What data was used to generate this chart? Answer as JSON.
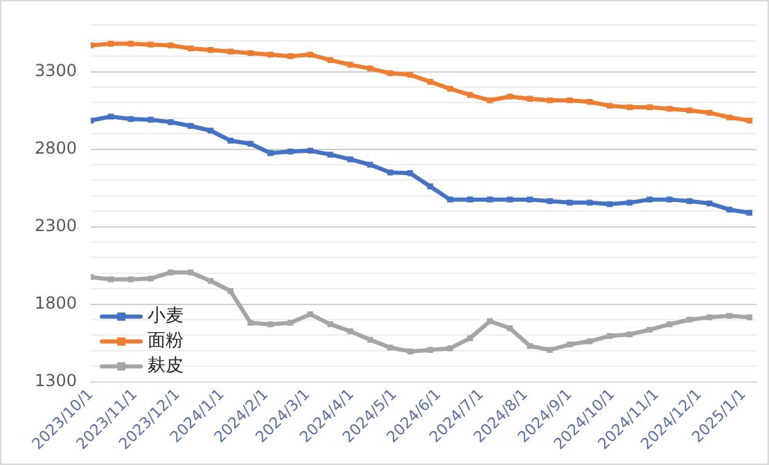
{
  "chart_data": {
    "type": "line",
    "marker": "square",
    "line_style": "solid",
    "grid": "y",
    "legend": "bottom left",
    "x": [
      "2023-10-01",
      "2023-10-15",
      "2023-10-29",
      "2023-11-12",
      "2023-11-26",
      "2023-12-10",
      "2023-12-24",
      "2024-01-07",
      "2024-01-21",
      "2024-02-04",
      "2024-02-18",
      "2024-03-03",
      "2024-03-17",
      "2024-03-31",
      "2024-04-14",
      "2024-04-28",
      "2024-05-12",
      "2024-05-26",
      "2024-06-09",
      "2024-06-23",
      "2024-07-07",
      "2024-07-21",
      "2024-08-04",
      "2024-08-18",
      "2024-09-01",
      "2024-09-15",
      "2024-09-29",
      "2024-10-13",
      "2024-10-27",
      "2024-11-10",
      "2024-11-24",
      "2024-12-08",
      "2024-12-22",
      "2025-01-05"
    ],
    "xlim": [
      "2023-10-01",
      "2025-01-10"
    ],
    "xticks": [
      {
        "value": "2023-10-01",
        "label": "2023/10/1"
      },
      {
        "value": "2023-11-01",
        "label": "2023/11/1"
      },
      {
        "value": "2023-12-01",
        "label": "2023/12/1"
      },
      {
        "value": "2024-01-01",
        "label": "2024/1/1"
      },
      {
        "value": "2024-02-01",
        "label": "2024/2/1"
      },
      {
        "value": "2024-03-01",
        "label": "2024/3/1"
      },
      {
        "value": "2024-04-01",
        "label": "2024/4/1"
      },
      {
        "value": "2024-05-01",
        "label": "2024/5/1"
      },
      {
        "value": "2024-06-01",
        "label": "2024/6/1"
      },
      {
        "value": "2024-07-01",
        "label": "2024/7/1"
      },
      {
        "value": "2024-08-01",
        "label": "2024/8/1"
      },
      {
        "value": "2024-09-01",
        "label": "2024/9/1"
      },
      {
        "value": "2024-10-01",
        "label": "2024/10/1"
      },
      {
        "value": "2024-11-01",
        "label": "2024/11/1"
      },
      {
        "value": "2024-12-01",
        "label": "2024/12/1"
      },
      {
        "value": "2025-01-01",
        "label": "2025/1/1"
      }
    ],
    "ylim": [
      1300,
      3600
    ],
    "yticks": [
      1300,
      {
        "value": 1400,
        "label": null
      },
      {
        "value": 1500,
        "label": null
      },
      {
        "value": 1600,
        "label": null
      },
      {
        "value": 1700,
        "label": null
      },
      1800,
      {
        "value": 1900,
        "label": null
      },
      {
        "value": 2000,
        "label": null
      },
      {
        "value": 2100,
        "label": null
      },
      {
        "value": 2200,
        "label": null
      },
      2300,
      {
        "value": 2400,
        "label": null
      },
      {
        "value": 2500,
        "label": null
      },
      {
        "value": 2600,
        "label": null
      },
      {
        "value": 2700,
        "label": null
      },
      2800,
      {
        "value": 2900,
        "label": null
      },
      {
        "value": 3000,
        "label": null
      },
      {
        "value": 3100,
        "label": null
      },
      {
        "value": 3200,
        "label": null
      },
      3300,
      {
        "value": 3400,
        "label": null
      },
      {
        "value": 3500,
        "label": null
      },
      {
        "value": 3600,
        "label": null
      }
    ],
    "series": [
      {
        "name": "小麦",
        "color": "#4472c4",
        "values": [
          2985,
          3010,
          2995,
          2990,
          2975,
          2950,
          2920,
          2855,
          2835,
          2775,
          2785,
          2790,
          2765,
          2735,
          2700,
          2650,
          2645,
          2560,
          2475,
          2475,
          2475,
          2475,
          2475,
          2465,
          2455,
          2455,
          2445,
          2455,
          2475,
          2475,
          2465,
          2450,
          2410,
          2390
        ]
      },
      {
        "name": "面粉",
        "color": "#ed7d31",
        "values": [
          3470,
          3480,
          3480,
          3475,
          3470,
          3450,
          3440,
          3430,
          3420,
          3410,
          3400,
          3410,
          3375,
          3345,
          3320,
          3290,
          3280,
          3235,
          3190,
          3150,
          3115,
          3140,
          3125,
          3115,
          3115,
          3105,
          3080,
          3070,
          3070,
          3060,
          3050,
          3035,
          3005,
          2985
        ]
      },
      {
        "name": "麸皮",
        "color": "#a5a5a5",
        "values": [
          1975,
          1960,
          1960,
          1965,
          2005,
          2005,
          1950,
          1885,
          1680,
          1670,
          1680,
          1735,
          1670,
          1625,
          1570,
          1520,
          1495,
          1505,
          1515,
          1580,
          1690,
          1645,
          1530,
          1505,
          1540,
          1560,
          1595,
          1605,
          1635,
          1670,
          1700,
          1715,
          1725,
          1715
        ]
      }
    ]
  }
}
